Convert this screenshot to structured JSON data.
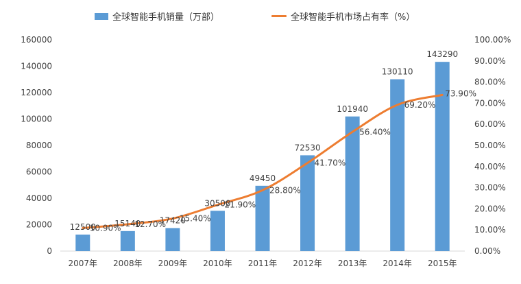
{
  "chart_data": {
    "type": "bar",
    "categories": [
      "2007年",
      "2008年",
      "2009年",
      "2010年",
      "2011年",
      "2012年",
      "2013年",
      "2014年",
      "2015年"
    ],
    "series": [
      {
        "name": "全球智能手机销量（万部）",
        "type": "bar",
        "axis": "left",
        "values": [
          12500,
          15140,
          17420,
          30500,
          49450,
          72530,
          101940,
          130110,
          143290
        ],
        "labels": [
          "12500",
          "15140",
          "17420",
          "30500",
          "49450",
          "72530",
          "101940",
          "130110",
          "143290"
        ],
        "color": "#5b9bd5"
      },
      {
        "name": "全球智能手机市场占有率（%）",
        "type": "line",
        "axis": "right",
        "values": [
          10.9,
          12.7,
          15.4,
          21.9,
          28.8,
          41.7,
          56.4,
          69.2,
          73.9
        ],
        "labels": [
          "10.90%",
          "12.70%",
          "15.40%",
          "21.90%",
          "28.80%",
          "41.70%",
          "56.40%",
          "69.20%",
          "73.90%"
        ],
        "color": "#ed7d31"
      }
    ],
    "y_left": {
      "ylim": [
        0,
        160000
      ],
      "ticks": [
        "0",
        "20000",
        "40000",
        "60000",
        "80000",
        "100000",
        "120000",
        "140000",
        "160000"
      ]
    },
    "y_right": {
      "ylim": [
        0,
        100
      ],
      "ticks": [
        "0.00%",
        "10.00%",
        "20.00%",
        "30.00%",
        "40.00%",
        "50.00%",
        "60.00%",
        "70.00%",
        "80.00%",
        "90.00%",
        "100.00%"
      ]
    },
    "grid": false,
    "legend_position": "top"
  }
}
